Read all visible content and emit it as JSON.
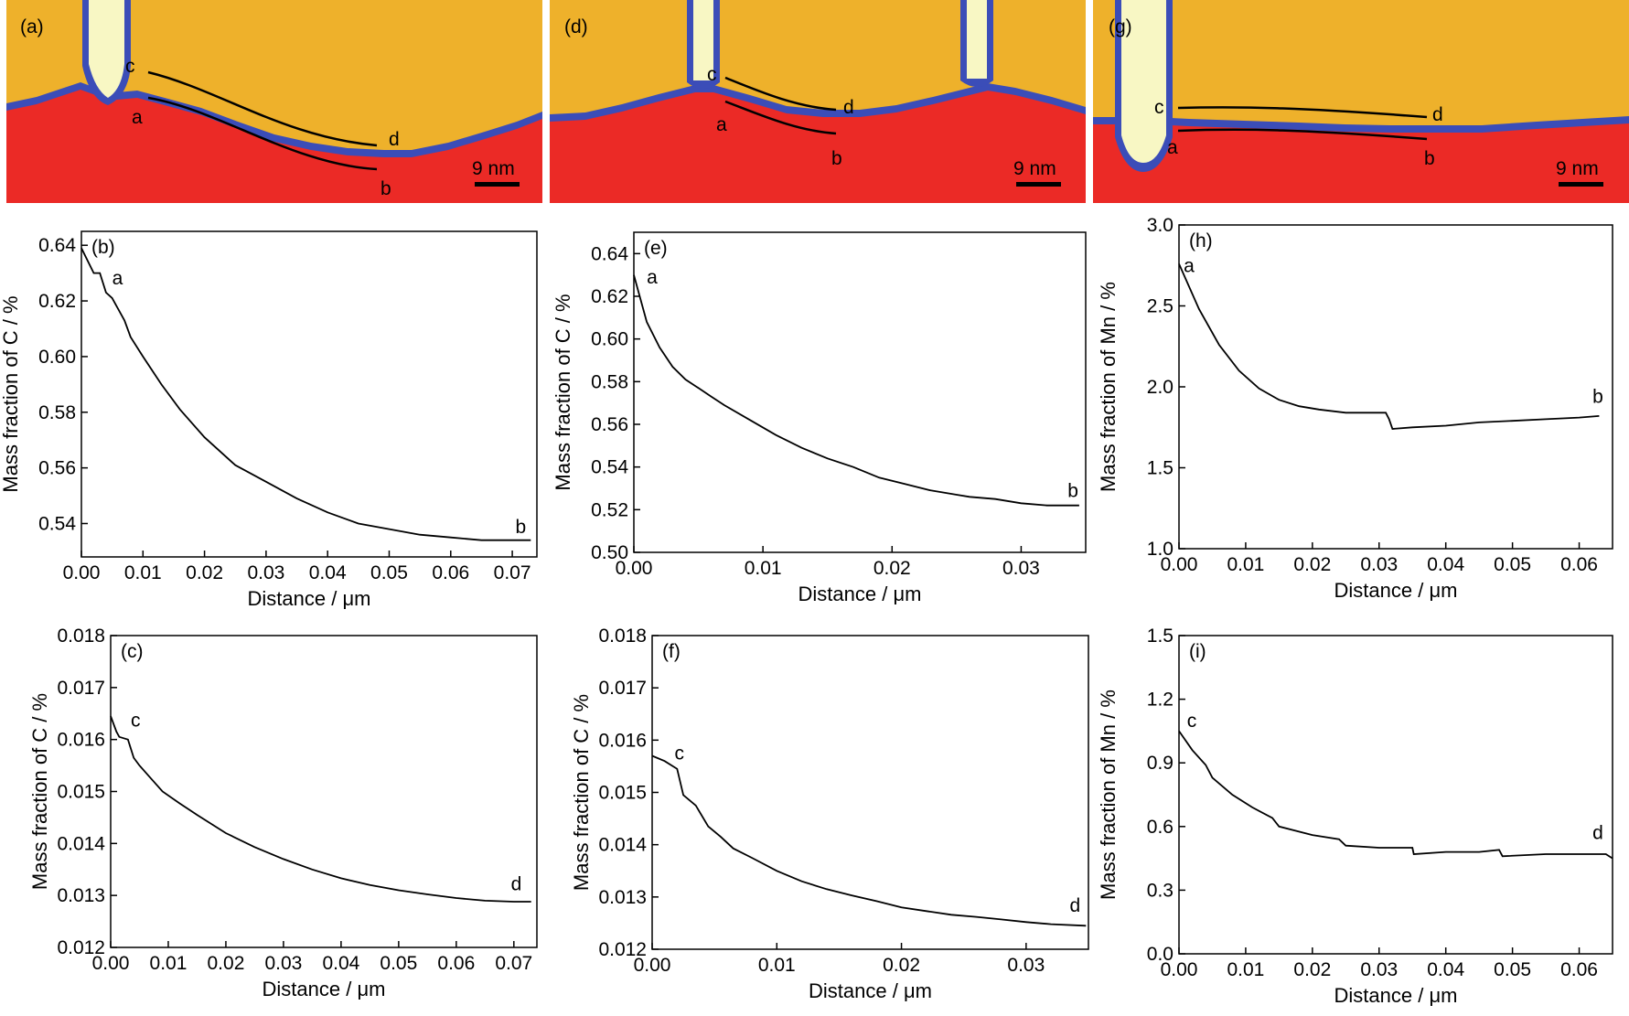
{
  "colors": {
    "matrix": "#EEB12B",
    "lower_phase": "#EB2A26",
    "interface": "#3B4DB8",
    "lamella": "#F8F7C4",
    "profile_line": "#000000",
    "background": "#ffffff"
  },
  "micrographs": [
    {
      "label": "(a)",
      "scale_bar": "9 nm",
      "markers": [
        "c",
        "d",
        "a",
        "b"
      ]
    },
    {
      "label": "(d)",
      "scale_bar": "9 nm",
      "markers": [
        "c",
        "d",
        "a",
        "b"
      ]
    },
    {
      "label": "(g)",
      "scale_bar": "9 nm",
      "markers": [
        "c",
        "d",
        "a",
        "b"
      ]
    }
  ],
  "chart_data": [
    {
      "type": "line",
      "panel": "(b)",
      "xlabel": "Distance / μm",
      "ylabel": "Mass fraction of C / %",
      "xlim": [
        0,
        0.074
      ],
      "ylim": [
        0.528,
        0.645
      ],
      "xticks": [
        0,
        0.01,
        0.02,
        0.03,
        0.04,
        0.05,
        0.06,
        0.07
      ],
      "xtick_labels": [
        "0.00",
        "0.01",
        "0.02",
        "0.03",
        "0.04",
        "0.05",
        "0.06",
        "0.07"
      ],
      "yticks": [
        0.54,
        0.56,
        0.58,
        0.6,
        0.62,
        0.64
      ],
      "ytick_labels": [
        "0.54",
        "0.56",
        "0.58",
        "0.60",
        "0.62",
        "0.64"
      ],
      "series": [
        {
          "x": [
            0,
            0.002,
            0.003,
            0.004,
            0.005,
            0.007,
            0.008,
            0.01,
            0.013,
            0.016,
            0.02,
            0.025,
            0.03,
            0.035,
            0.04,
            0.045,
            0.05,
            0.055,
            0.06,
            0.065,
            0.07,
            0.073
          ],
          "y": [
            0.639,
            0.63,
            0.63,
            0.623,
            0.621,
            0.613,
            0.607,
            0.6,
            0.59,
            0.581,
            0.571,
            0.561,
            0.555,
            0.549,
            0.544,
            0.54,
            0.538,
            0.536,
            0.535,
            0.534,
            0.534,
            0.534
          ]
        }
      ],
      "annotations": [
        {
          "text": "a",
          "x": 0.005,
          "y": 0.626
        },
        {
          "text": "b",
          "x": 0.0705,
          "y": 0.5365
        }
      ]
    },
    {
      "type": "line",
      "panel": "(e)",
      "xlabel": "Distance / μm",
      "ylabel": "Mass fraction of C / %",
      "xlim": [
        0,
        0.035
      ],
      "ylim": [
        0.5,
        0.65
      ],
      "xticks": [
        0,
        0.01,
        0.02,
        0.03
      ],
      "xtick_labels": [
        "0.00",
        "0.01",
        "0.02",
        "0.03"
      ],
      "yticks": [
        0.5,
        0.52,
        0.54,
        0.56,
        0.58,
        0.6,
        0.62,
        0.64
      ],
      "ytick_labels": [
        "0.50",
        "0.52",
        "0.54",
        "0.56",
        "0.58",
        "0.60",
        "0.62",
        "0.64"
      ],
      "series": [
        {
          "x": [
            0,
            0.001,
            0.002,
            0.003,
            0.004,
            0.005,
            0.006,
            0.007,
            0.009,
            0.011,
            0.013,
            0.015,
            0.017,
            0.019,
            0.021,
            0.023,
            0.025,
            0.026,
            0.028,
            0.03,
            0.032,
            0.0345
          ],
          "y": [
            0.63,
            0.608,
            0.596,
            0.587,
            0.581,
            0.577,
            0.573,
            0.569,
            0.562,
            0.555,
            0.549,
            0.544,
            0.54,
            0.535,
            0.532,
            0.529,
            0.527,
            0.526,
            0.525,
            0.523,
            0.522,
            0.522
          ]
        }
      ],
      "annotations": [
        {
          "text": "a",
          "x": 0.001,
          "y": 0.626
        },
        {
          "text": "b",
          "x": 0.0336,
          "y": 0.526
        }
      ]
    },
    {
      "type": "line",
      "panel": "(h)",
      "xlabel": "Distance / μm",
      "ylabel": "Mass fraction of Mn / %",
      "xlim": [
        0,
        0.065
      ],
      "ylim": [
        1.0,
        3.0
      ],
      "xticks": [
        0,
        0.01,
        0.02,
        0.03,
        0.04,
        0.05,
        0.06
      ],
      "xtick_labels": [
        "0.00",
        "0.01",
        "0.02",
        "0.03",
        "0.04",
        "0.05",
        "0.06"
      ],
      "yticks": [
        1.0,
        1.5,
        2.0,
        2.5,
        3.0
      ],
      "ytick_labels": [
        "1.0",
        "1.5",
        "2.0",
        "2.5",
        "3.0"
      ],
      "series": [
        {
          "x": [
            0,
            0.003,
            0.006,
            0.009,
            0.012,
            0.015,
            0.018,
            0.021,
            0.025,
            0.028,
            0.031,
            0.0315,
            0.032,
            0.035,
            0.04,
            0.045,
            0.05,
            0.055,
            0.06,
            0.063
          ],
          "y": [
            2.76,
            2.48,
            2.26,
            2.1,
            1.99,
            1.92,
            1.88,
            1.86,
            1.84,
            1.84,
            1.84,
            1.8,
            1.74,
            1.75,
            1.76,
            1.78,
            1.79,
            1.8,
            1.81,
            1.82
          ]
        }
      ],
      "annotations": [
        {
          "text": "a",
          "x": 0.0007,
          "y": 2.71
        },
        {
          "text": "b",
          "x": 0.062,
          "y": 1.9
        }
      ]
    },
    {
      "type": "line",
      "panel": "(c)",
      "xlabel": "Distance / μm",
      "ylabel": "Mass fraction of C / %",
      "xlim": [
        0,
        0.074
      ],
      "ylim": [
        0.012,
        0.018
      ],
      "xticks": [
        0,
        0.01,
        0.02,
        0.03,
        0.04,
        0.05,
        0.06,
        0.07
      ],
      "xtick_labels": [
        "0.00",
        "0.01",
        "0.02",
        "0.03",
        "0.04",
        "0.05",
        "0.06",
        "0.07"
      ],
      "yticks": [
        0.012,
        0.013,
        0.014,
        0.015,
        0.016,
        0.017,
        0.018
      ],
      "ytick_labels": [
        "0.012",
        "0.013",
        "0.014",
        "0.015",
        "0.016",
        "0.017",
        "0.018"
      ],
      "series": [
        {
          "x": [
            0,
            0.001,
            0.0015,
            0.003,
            0.004,
            0.005,
            0.007,
            0.009,
            0.012,
            0.015,
            0.02,
            0.025,
            0.03,
            0.035,
            0.04,
            0.045,
            0.05,
            0.055,
            0.06,
            0.065,
            0.07,
            0.073
          ],
          "y": [
            0.01645,
            0.01615,
            0.01605,
            0.016,
            0.01565,
            0.0155,
            0.01525,
            0.015,
            0.01477,
            0.01455,
            0.0142,
            0.01393,
            0.0137,
            0.0135,
            0.01333,
            0.0132,
            0.0131,
            0.01302,
            0.01295,
            0.0129,
            0.01288,
            0.01288
          ]
        }
      ],
      "annotations": [
        {
          "text": "c",
          "x": 0.0035,
          "y": 0.01625
        },
        {
          "text": "d",
          "x": 0.0695,
          "y": 0.0131
        }
      ]
    },
    {
      "type": "line",
      "panel": "(f)",
      "xlabel": "Distance / μm",
      "ylabel": "Mass fraction of C / %",
      "xlim": [
        0,
        0.035
      ],
      "ylim": [
        0.012,
        0.018
      ],
      "xticks": [
        0,
        0.01,
        0.02,
        0.03
      ],
      "xtick_labels": [
        "0.00",
        "0.01",
        "0.02",
        "0.03"
      ],
      "yticks": [
        0.012,
        0.013,
        0.014,
        0.015,
        0.016,
        0.017,
        0.018
      ],
      "ytick_labels": [
        "0.012",
        "0.013",
        "0.014",
        "0.015",
        "0.016",
        "0.017",
        "0.018"
      ],
      "series": [
        {
          "x": [
            0,
            0.001,
            0.002,
            0.0025,
            0.0035,
            0.0045,
            0.0055,
            0.0065,
            0.008,
            0.01,
            0.012,
            0.014,
            0.016,
            0.018,
            0.02,
            0.022,
            0.024,
            0.026,
            0.028,
            0.03,
            0.032,
            0.0348
          ],
          "y": [
            0.0157,
            0.0156,
            0.01545,
            0.01495,
            0.01475,
            0.01435,
            0.01415,
            0.01393,
            0.01375,
            0.0135,
            0.0133,
            0.01315,
            0.01303,
            0.01292,
            0.0128,
            0.01273,
            0.01266,
            0.01262,
            0.01257,
            0.01252,
            0.01248,
            0.01245
          ]
        }
      ],
      "annotations": [
        {
          "text": "c",
          "x": 0.0018,
          "y": 0.01563
        },
        {
          "text": "d",
          "x": 0.0335,
          "y": 0.01272
        }
      ]
    },
    {
      "type": "line",
      "panel": "(i)",
      "xlabel": "Distance / μm",
      "ylabel": "Mass fraction of Mn / %",
      "xlim": [
        0,
        0.065
      ],
      "ylim": [
        0.0,
        1.5
      ],
      "xticks": [
        0,
        0.01,
        0.02,
        0.03,
        0.04,
        0.05,
        0.06
      ],
      "xtick_labels": [
        "0.00",
        "0.01",
        "0.02",
        "0.03",
        "0.04",
        "0.05",
        "0.06"
      ],
      "yticks": [
        0.0,
        0.3,
        0.6,
        0.9,
        1.2,
        1.5
      ],
      "ytick_labels": [
        "0.0",
        "0.3",
        "0.6",
        "0.9",
        "1.2",
        "1.5"
      ],
      "series": [
        {
          "x": [
            0,
            0.002,
            0.004,
            0.005,
            0.008,
            0.011,
            0.014,
            0.015,
            0.02,
            0.024,
            0.025,
            0.03,
            0.035,
            0.0352,
            0.04,
            0.045,
            0.048,
            0.0485,
            0.055,
            0.06,
            0.064,
            0.065
          ],
          "y": [
            1.05,
            0.96,
            0.89,
            0.83,
            0.75,
            0.69,
            0.64,
            0.6,
            0.56,
            0.54,
            0.51,
            0.5,
            0.5,
            0.47,
            0.48,
            0.48,
            0.49,
            0.46,
            0.47,
            0.47,
            0.47,
            0.45
          ]
        }
      ],
      "annotations": [
        {
          "text": "c",
          "x": 0.0012,
          "y": 1.07
        },
        {
          "text": "d",
          "x": 0.062,
          "y": 0.54
        }
      ]
    }
  ]
}
